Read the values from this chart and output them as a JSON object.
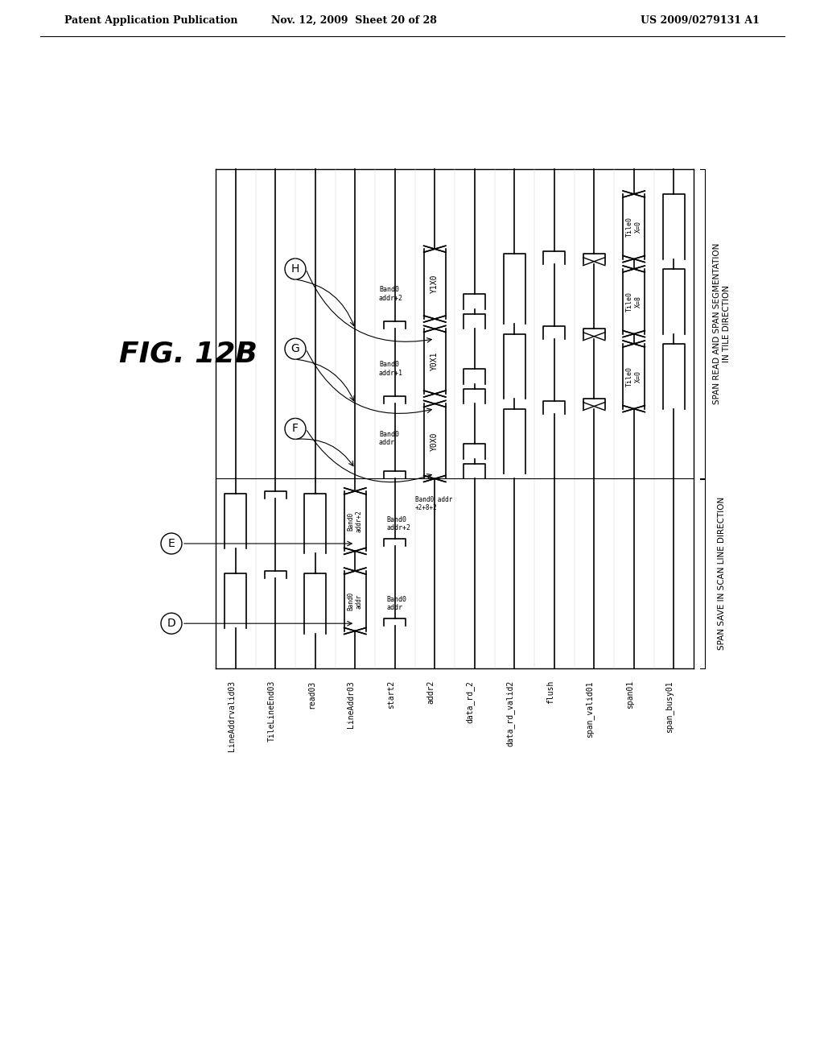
{
  "header_left": "Patent Application Publication",
  "header_center": "Nov. 12, 2009  Sheet 20 of 28",
  "header_right": "US 2009/0279131 A1",
  "fig_title": "FIG. 12B",
  "background_color": "#ffffff",
  "signal_names": [
    "LineAddrvalid03",
    "TileLineEnd03",
    "read03",
    "LineAddr03",
    "start2",
    "addr2",
    "data_rd_2",
    "data_rd_valid2",
    "flush",
    "span_valid01",
    "span01",
    "span_busy01"
  ],
  "section_label_left": "SPAN SAVE IN SCAN LINE DIRECTION",
  "section_label_right": "SPAN READ AND SPAN SEGMENTATION\nIN TILE DIRECTION"
}
